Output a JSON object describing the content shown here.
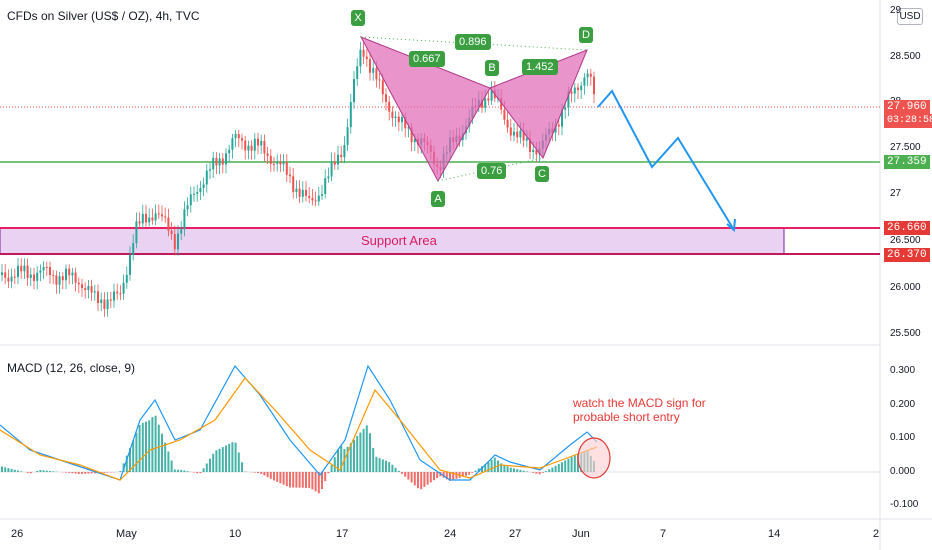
{
  "chart": {
    "title": "CFDs on Silver (US$ / OZ), 4h, TVC",
    "currency_button": "USD",
    "macd_title": "MACD (12, 26, close, 9)",
    "price_axis": [
      "29",
      "28.500",
      "28",
      "27.500",
      "27",
      "26.500",
      "26.000",
      "25.500"
    ],
    "macd_axis": [
      "0.300",
      "0.200",
      "0.100",
      "0.000",
      "-0.100"
    ],
    "time_axis": [
      "26",
      "May",
      "10",
      "17",
      "24",
      "27",
      "Jun",
      "7",
      "14",
      "2"
    ],
    "tags": {
      "last_price": "27.960",
      "countdown": "03:28:58",
      "level_green": "27.359",
      "level_top": "26.660",
      "level_bottom": "26.370"
    },
    "pattern": {
      "points": [
        "X",
        "A",
        "B",
        "C",
        "D"
      ],
      "ratios": {
        "xb": "0.667",
        "xd": "0.896",
        "ac": "0.76",
        "bd": "1.452"
      }
    },
    "support_label": "Support Area",
    "note": "watch the MACD sign for probable short entry",
    "colors": {
      "up": "#26a69a",
      "down": "#ef5350",
      "support_fill": "#e1bee7",
      "support_line": "#e91e63",
      "green_line": "#4caf50",
      "pattern_fill": "#e066b5",
      "projection": "#2196f3",
      "macd_line": "#2196f3",
      "signal_line": "#ff9800"
    }
  }
}
